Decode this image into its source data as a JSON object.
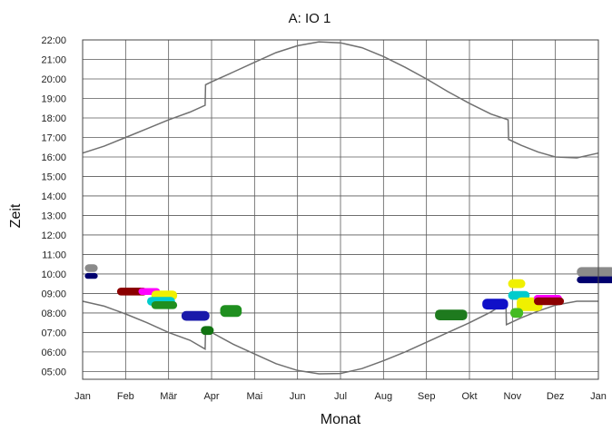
{
  "chart_data": {
    "type": "scatter",
    "title": "A: IO 1",
    "xlabel": "Monat",
    "ylabel": "Zeit",
    "x_tick_labels": [
      "Jan",
      "Feb",
      "Mär",
      "Apr",
      "Mai",
      "Jun",
      "Jul",
      "Aug",
      "Sep",
      "Okt",
      "Nov",
      "Dez",
      "Jan"
    ],
    "y_tick_labels": [
      "05:00",
      "06:00",
      "07:00",
      "08:00",
      "09:00",
      "10:00",
      "11:00",
      "12:00",
      "13:00",
      "14:00",
      "15:00",
      "16:00",
      "17:00",
      "18:00",
      "19:00",
      "20:00",
      "21:00",
      "22:00"
    ],
    "xlim": [
      0,
      12
    ],
    "ylim": [
      4.6,
      22.0
    ],
    "grid": true,
    "series": [
      {
        "role": "sunset",
        "color": "#707070",
        "points": [
          [
            0,
            16.2
          ],
          [
            0.5,
            16.55
          ],
          [
            1,
            17.0
          ],
          [
            1.5,
            17.45
          ],
          [
            2,
            17.9
          ],
          [
            2.5,
            18.3
          ],
          [
            2.85,
            18.65
          ],
          [
            2.86,
            19.7
          ],
          [
            3,
            19.85
          ],
          [
            3.5,
            20.35
          ],
          [
            4,
            20.85
          ],
          [
            4.5,
            21.35
          ],
          [
            5,
            21.7
          ],
          [
            5.5,
            21.9
          ],
          [
            6,
            21.85
          ],
          [
            6.5,
            21.6
          ],
          [
            7,
            21.15
          ],
          [
            7.5,
            20.6
          ],
          [
            8,
            20.0
          ],
          [
            8.5,
            19.35
          ],
          [
            9,
            18.75
          ],
          [
            9.5,
            18.2
          ],
          [
            9.9,
            17.9
          ],
          [
            9.91,
            16.9
          ],
          [
            10.2,
            16.6
          ],
          [
            10.6,
            16.25
          ],
          [
            11,
            16.0
          ],
          [
            11.5,
            15.95
          ],
          [
            12,
            16.2
          ]
        ]
      },
      {
        "role": "sunrise",
        "color": "#707070",
        "points": [
          [
            0,
            8.6
          ],
          [
            0.5,
            8.35
          ],
          [
            1,
            7.95
          ],
          [
            1.5,
            7.5
          ],
          [
            2,
            7.0
          ],
          [
            2.5,
            6.6
          ],
          [
            2.85,
            6.15
          ],
          [
            2.86,
            7.15
          ],
          [
            3,
            7.0
          ],
          [
            3.5,
            6.4
          ],
          [
            4,
            5.9
          ],
          [
            4.5,
            5.4
          ],
          [
            5,
            5.05
          ],
          [
            5.5,
            4.88
          ],
          [
            6,
            4.9
          ],
          [
            6.5,
            5.15
          ],
          [
            7,
            5.55
          ],
          [
            7.5,
            6.0
          ],
          [
            8,
            6.5
          ],
          [
            8.5,
            7.0
          ],
          [
            9,
            7.5
          ],
          [
            9.5,
            8.05
          ],
          [
            9.85,
            8.55
          ],
          [
            9.86,
            7.4
          ],
          [
            10.2,
            7.75
          ],
          [
            10.6,
            8.1
          ],
          [
            11,
            8.4
          ],
          [
            11.5,
            8.6
          ],
          [
            12,
            8.6
          ]
        ]
      }
    ],
    "markers": [
      {
        "x": 0.05,
        "y": 10.3,
        "w": 0.3,
        "h": 0.4,
        "color": "#8a8a8a"
      },
      {
        "x": 0.05,
        "y": 9.9,
        "w": 0.3,
        "h": 0.3,
        "color": "#00006e"
      },
      {
        "x": 0.8,
        "y": 9.1,
        "w": 0.7,
        "h": 0.4,
        "color": "#8b0000"
      },
      {
        "x": 1.3,
        "y": 9.1,
        "w": 0.5,
        "h": 0.35,
        "color": "#ff00ff"
      },
      {
        "x": 1.6,
        "y": 8.9,
        "w": 0.6,
        "h": 0.5,
        "color": "#f0f000"
      },
      {
        "x": 1.5,
        "y": 8.6,
        "w": 0.65,
        "h": 0.45,
        "color": "#00cccc"
      },
      {
        "x": 1.6,
        "y": 8.4,
        "w": 0.6,
        "h": 0.4,
        "color": "#1f8f1f"
      },
      {
        "x": 2.3,
        "y": 7.85,
        "w": 0.65,
        "h": 0.5,
        "color": "#1a1aaa"
      },
      {
        "x": 2.75,
        "y": 7.1,
        "w": 0.3,
        "h": 0.45,
        "color": "#127312"
      },
      {
        "x": 3.2,
        "y": 8.1,
        "w": 0.5,
        "h": 0.6,
        "color": "#1f8f1f"
      },
      {
        "x": 8.2,
        "y": 7.9,
        "w": 0.75,
        "h": 0.55,
        "color": "#1e7a1e"
      },
      {
        "x": 9.3,
        "y": 8.45,
        "w": 0.6,
        "h": 0.55,
        "color": "#1010c8"
      },
      {
        "x": 9.9,
        "y": 9.5,
        "w": 0.4,
        "h": 0.45,
        "color": "#f0f000"
      },
      {
        "x": 9.9,
        "y": 8.9,
        "w": 0.5,
        "h": 0.45,
        "color": "#00cccc"
      },
      {
        "x": 10.1,
        "y": 8.45,
        "w": 0.6,
        "h": 0.7,
        "color": "#f0f000"
      },
      {
        "x": 9.95,
        "y": 8.0,
        "w": 0.3,
        "h": 0.5,
        "color": "#44bb22"
      },
      {
        "x": 10.5,
        "y": 8.75,
        "w": 0.65,
        "h": 0.35,
        "color": "#ff00ff"
      },
      {
        "x": 10.5,
        "y": 8.6,
        "w": 0.7,
        "h": 0.4,
        "color": "#8b0000"
      },
      {
        "x": 11.5,
        "y": 10.1,
        "w": 0.9,
        "h": 0.5,
        "color": "#8a8a8a"
      },
      {
        "x": 11.5,
        "y": 9.7,
        "w": 0.9,
        "h": 0.35,
        "color": "#00006e"
      }
    ]
  }
}
